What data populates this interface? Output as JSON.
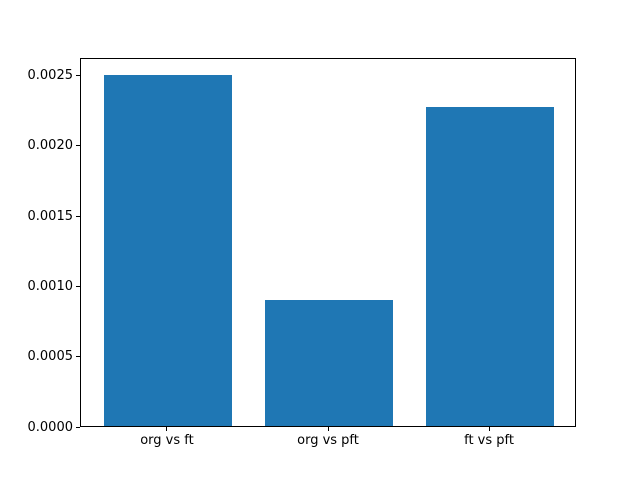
{
  "figure": {
    "background": "#ffffff"
  },
  "chart_data": {
    "type": "bar",
    "title": "",
    "xlabel": "",
    "ylabel": "",
    "categories": [
      "org vs ft",
      "org vs pft",
      "ft vs pft"
    ],
    "values": [
      0.0025,
      0.0009,
      0.00227
    ],
    "x_positions": [
      0,
      1,
      2
    ],
    "bar_width_data_units": 0.8,
    "xlim": [
      -0.54,
      2.54
    ],
    "ylim": [
      0,
      0.002625
    ],
    "yticks": [
      0,
      0.0005,
      0.001,
      0.0015,
      0.002,
      0.0025
    ],
    "ytick_labels": [
      "0.0000",
      "0.0005",
      "0.0010",
      "0.0015",
      "0.0020",
      "0.0025"
    ],
    "bar_color": "#1f77b4",
    "axis_color": "#000000",
    "text_color": "#000000",
    "grid": false,
    "legend": null
  }
}
